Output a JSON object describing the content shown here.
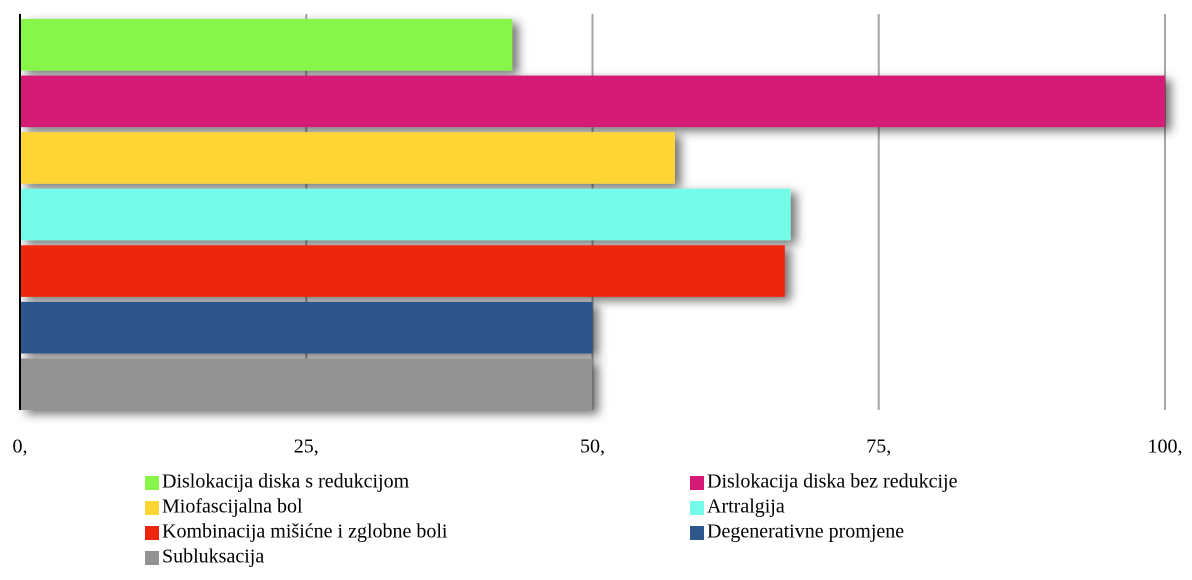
{
  "chart_data": {
    "type": "bar",
    "orientation": "horizontal",
    "series": [
      {
        "name": "Dislokacija diska s redukcijom",
        "color": "#87f54a",
        "value": 43
      },
      {
        "name": "Dislokacija diska bez redukcije",
        "color": "#d41a74",
        "value": 100
      },
      {
        "name": "Miofascijalna bol",
        "color": "#fdd535",
        "value": 57.2
      },
      {
        "name": "Artralgija",
        "color": "#74fce8",
        "value": 67.3
      },
      {
        "name": "Kombinacija mišićne i zglobne boli",
        "color": "#ee250e",
        "value": 66.8
      },
      {
        "name": "Degenerativne promjene",
        "color": "#2e578c",
        "value": 50
      },
      {
        "name": "Subluksacija",
        "color": "#939393",
        "value": 50
      }
    ],
    "xlim": [
      0,
      100
    ],
    "xticks": [
      {
        "value": 0,
        "label": "0,"
      },
      {
        "value": 25,
        "label": "25,"
      },
      {
        "value": 50,
        "label": "50,"
      },
      {
        "value": 75,
        "label": "75,"
      },
      {
        "value": 100,
        "label": "100,"
      }
    ],
    "grid": true,
    "legend": "bottom"
  }
}
